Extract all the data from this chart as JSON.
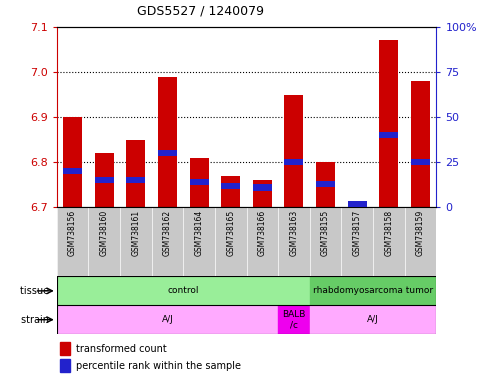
{
  "title": "GDS5527 / 1240079",
  "samples": [
    "GSM738156",
    "GSM738160",
    "GSM738161",
    "GSM738162",
    "GSM738164",
    "GSM738165",
    "GSM738166",
    "GSM738163",
    "GSM738155",
    "GSM738157",
    "GSM738158",
    "GSM738159"
  ],
  "red_values": [
    6.9,
    6.82,
    6.85,
    6.99,
    6.81,
    6.77,
    6.76,
    6.95,
    6.8,
    6.7,
    7.07,
    6.98
  ],
  "blue_values": [
    20,
    15,
    15,
    30,
    14,
    12,
    11,
    25,
    13,
    2,
    40,
    25
  ],
  "ylim_left": [
    6.7,
    7.1
  ],
  "ylim_right": [
    0,
    100
  ],
  "yticks_left": [
    6.7,
    6.8,
    6.9,
    7.0,
    7.1
  ],
  "yticks_right": [
    0,
    25,
    50,
    75,
    100
  ],
  "ytick_labels_right": [
    "0",
    "25",
    "50",
    "75",
    "100%"
  ],
  "bar_color_red": "#CC0000",
  "bar_color_blue": "#2222CC",
  "background_gray": "#C8C8C8",
  "right_axis_color": "#2222CC",
  "left_axis_color": "#CC0000",
  "base_value": 6.7,
  "tissue_groups": [
    {
      "label": "control",
      "start": 0,
      "end": 8,
      "color": "#99EE99"
    },
    {
      "label": "rhabdomyosarcoma tumor",
      "start": 8,
      "end": 12,
      "color": "#66CC66"
    }
  ],
  "strain_groups": [
    {
      "label": "A/J",
      "start": 0,
      "end": 7,
      "color": "#FFAAFF"
    },
    {
      "label": "BALB\n/c",
      "start": 7,
      "end": 8,
      "color": "#EE00EE"
    },
    {
      "label": "A/J",
      "start": 8,
      "end": 12,
      "color": "#FFAAFF"
    }
  ]
}
